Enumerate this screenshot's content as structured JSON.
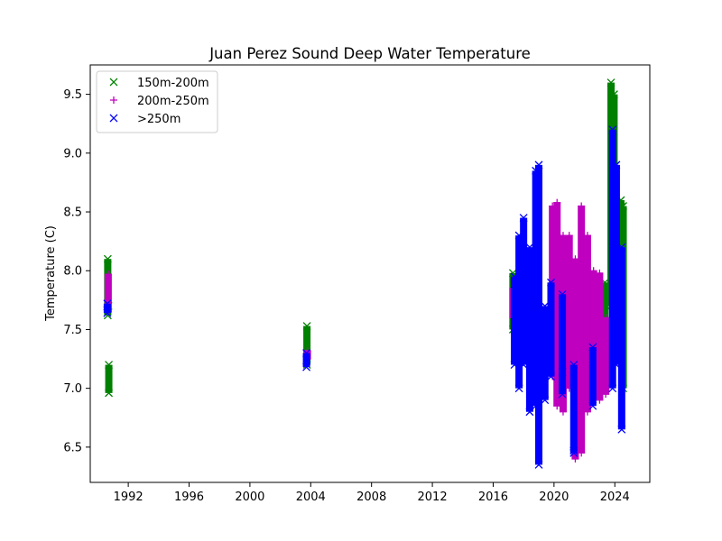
{
  "chart_data": {
    "type": "scatter",
    "title": "Juan Perez Sound Deep Water Temperature",
    "xlabel": "",
    "ylabel": "Temperature (C)",
    "xlim": [
      1989.5,
      2026.3
    ],
    "ylim": [
      6.2,
      9.75
    ],
    "xticks": [
      1992,
      1996,
      2000,
      2004,
      2008,
      2012,
      2016,
      2020,
      2024
    ],
    "yticks": [
      6.5,
      7.0,
      7.5,
      8.0,
      8.5,
      9.0,
      9.5
    ],
    "legend_position": "upper-left",
    "grid": false,
    "series": [
      {
        "name": "150m-200m",
        "marker": "x",
        "color": "#008000",
        "ranges": [
          {
            "x": 1990.65,
            "min": 7.62,
            "max": 8.1
          },
          {
            "x": 1990.72,
            "min": 6.96,
            "max": 7.2
          },
          {
            "x": 2003.75,
            "min": 7.2,
            "max": 7.53
          },
          {
            "x": 2017.3,
            "min": 7.5,
            "max": 7.98
          },
          {
            "x": 2023.35,
            "min": 7.3,
            "max": 7.9
          },
          {
            "x": 2023.75,
            "min": 7.7,
            "max": 9.6
          },
          {
            "x": 2023.95,
            "min": 7.4,
            "max": 9.5
          },
          {
            "x": 2024.4,
            "min": 7.8,
            "max": 8.6
          },
          {
            "x": 2024.55,
            "min": 7.0,
            "max": 8.55
          }
        ],
        "points": [
          {
            "x": 1990.7,
            "y": 7.7
          },
          {
            "x": 2024.5,
            "y": 7.47
          }
        ]
      },
      {
        "name": "200m-250m",
        "marker": "+",
        "color": "#bf00bf",
        "ranges": [
          {
            "x": 1990.68,
            "min": 7.65,
            "max": 7.97
          },
          {
            "x": 2003.78,
            "min": 7.25,
            "max": 7.32
          },
          {
            "x": 2017.3,
            "min": 7.6,
            "max": 7.85
          },
          {
            "x": 2019.9,
            "min": 7.1,
            "max": 8.55
          },
          {
            "x": 2020.2,
            "min": 6.85,
            "max": 8.58
          },
          {
            "x": 2020.6,
            "min": 6.8,
            "max": 8.3
          },
          {
            "x": 2021.0,
            "min": 7.0,
            "max": 8.3
          },
          {
            "x": 2021.4,
            "min": 6.4,
            "max": 8.1
          },
          {
            "x": 2021.8,
            "min": 6.45,
            "max": 8.55
          },
          {
            "x": 2022.2,
            "min": 6.8,
            "max": 8.3
          },
          {
            "x": 2022.6,
            "min": 6.9,
            "max": 8.0
          },
          {
            "x": 2023.0,
            "min": 6.9,
            "max": 7.98
          },
          {
            "x": 2023.4,
            "min": 6.95,
            "max": 7.6
          }
        ],
        "points": []
      },
      {
        "name": ">250m",
        "marker": "x",
        "color": "#0000ff",
        "ranges": [
          {
            "x": 1990.62,
            "min": 7.64,
            "max": 7.72
          },
          {
            "x": 2003.72,
            "min": 7.18,
            "max": 7.3
          },
          {
            "x": 2017.4,
            "min": 7.2,
            "max": 7.95
          },
          {
            "x": 2017.7,
            "min": 7.0,
            "max": 8.3
          },
          {
            "x": 2018.0,
            "min": 7.2,
            "max": 8.45
          },
          {
            "x": 2018.4,
            "min": 6.8,
            "max": 8.2
          },
          {
            "x": 2018.8,
            "min": 6.85,
            "max": 8.85
          },
          {
            "x": 2019.0,
            "min": 6.35,
            "max": 8.9
          },
          {
            "x": 2019.4,
            "min": 6.9,
            "max": 7.7
          },
          {
            "x": 2019.8,
            "min": 7.1,
            "max": 7.9
          },
          {
            "x": 2020.55,
            "min": 6.95,
            "max": 7.8
          },
          {
            "x": 2021.3,
            "min": 6.45,
            "max": 7.2
          },
          {
            "x": 2022.55,
            "min": 6.85,
            "max": 7.35
          },
          {
            "x": 2023.85,
            "min": 7.0,
            "max": 9.2
          },
          {
            "x": 2024.1,
            "min": 7.2,
            "max": 8.9
          },
          {
            "x": 2024.45,
            "min": 6.65,
            "max": 8.2
          }
        ],
        "points": [
          {
            "x": 2020.55,
            "y": 7.14
          },
          {
            "x": 2021.3,
            "y": 6.47
          }
        ]
      }
    ]
  }
}
